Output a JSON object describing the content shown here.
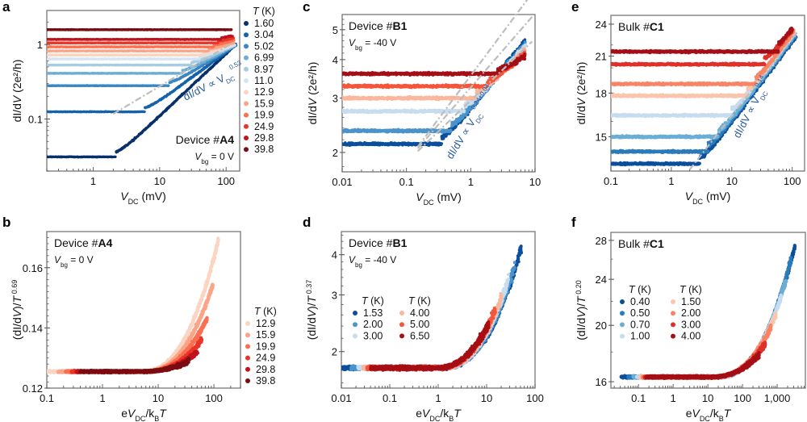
{
  "figure": {
    "panels": [
      "a",
      "b",
      "c",
      "d",
      "e",
      "f"
    ]
  },
  "chart_data": [
    {
      "panel": "a",
      "type": "scatter",
      "title": "",
      "xlabel": "V_DC (mV)",
      "ylabel": "dI/dV (2e²/h)",
      "xscale": "log",
      "yscale": "log",
      "xlim": [
        0.2,
        160
      ],
      "ylim": [
        0.02,
        2.86
      ],
      "xticks": [
        {
          "v": 1,
          "label": "1"
        },
        {
          "v": 10,
          "label": "10"
        },
        {
          "v": 100,
          "label": "100"
        }
      ],
      "yticks": [
        {
          "v": 0.1,
          "label": "0.1"
        },
        {
          "v": 1,
          "label": "1"
        }
      ],
      "annotations": {
        "device_prefix": "Device #",
        "device_id": "A4",
        "vbg_label": "= 0 V",
        "fit_text": "dI/dV ∝ V",
        "fit_sub": "DC",
        "fit_exp": "0.53"
      },
      "fit_line": {
        "exponent": 0.53,
        "x_range": [
          2,
          130
        ],
        "y_at_100": 0.93
      },
      "legend_title": "T (K)",
      "legend_position": "right-outside",
      "series": [
        {
          "name": "1.60",
          "color": "#08306b",
          "plateau": 0.031,
          "onset": 2.2,
          "end_y": 1.0,
          "end_x": 140
        },
        {
          "name": "3.04",
          "color": "#1663aa",
          "plateau": 0.125,
          "onset": 6,
          "end_y": 0.98,
          "end_x": 140
        },
        {
          "name": "5.02",
          "color": "#3b87c2",
          "plateau": 0.28,
          "onset": 14,
          "end_y": 0.97,
          "end_x": 135
        },
        {
          "name": "6.99",
          "color": "#6aaed6",
          "plateau": 0.41,
          "onset": 22,
          "end_y": 0.97,
          "end_x": 135
        },
        {
          "name": "8.97",
          "color": "#a6cde3",
          "plateau": 0.53,
          "onset": 30,
          "end_y": 0.98,
          "end_x": 135
        },
        {
          "name": "11.0",
          "color": "#d3e4f3",
          "plateau": 0.64,
          "onset": 40,
          "end_y": 1.0,
          "end_x": 135
        },
        {
          "name": "12.9",
          "color": "#fcd4c2",
          "plateau": 0.72,
          "onset": 45,
          "end_y": 1.02,
          "end_x": 130
        },
        {
          "name": "15.9",
          "color": "#fca487",
          "plateau": 0.82,
          "onset": 55,
          "end_y": 1.06,
          "end_x": 130
        },
        {
          "name": "19.9",
          "color": "#fa7051",
          "plateau": 0.93,
          "onset": 65,
          "end_y": 1.13,
          "end_x": 130
        },
        {
          "name": "24.9",
          "color": "#e8362a",
          "plateau": 1.05,
          "onset": 75,
          "end_y": 1.22,
          "end_x": 130
        },
        {
          "name": "29.8",
          "color": "#c0131c",
          "plateau": 1.17,
          "onset": 85,
          "end_y": 1.3,
          "end_x": 125
        },
        {
          "name": "39.8",
          "color": "#7a0d13",
          "plateau": 1.58,
          "onset": 200,
          "end_y": 1.6,
          "end_x": 120
        }
      ]
    },
    {
      "panel": "b",
      "type": "scatter",
      "xlabel": "eV_DC/k_B T",
      "ylabel": "(dI/dV)/T^0.69",
      "xscale": "log",
      "yscale": "linear",
      "xlim": [
        0.1,
        300
      ],
      "ylim": [
        0.12,
        0.172
      ],
      "xticks": [
        {
          "v": 0.1,
          "label": "0.1"
        },
        {
          "v": 1,
          "label": "1"
        },
        {
          "v": 10,
          "label": "10"
        },
        {
          "v": 100,
          "label": "100"
        }
      ],
      "yticks": [
        {
          "v": 0.12,
          "label": "0.12"
        },
        {
          "v": 0.14,
          "label": "0.14"
        },
        {
          "v": 0.16,
          "label": "0.16"
        }
      ],
      "annotations": {
        "device_prefix": "Device #",
        "device_id": "A4",
        "vbg_label": "= 0 V"
      },
      "legend_title": "T (K)",
      "legend_position": "right-outside",
      "collapse_value": 0.1255,
      "series": [
        {
          "name": "12.9",
          "color": "#fcd4c2",
          "x_max": 120,
          "y_max": 0.169
        },
        {
          "name": "15.9",
          "color": "#fca487",
          "x_max": 95,
          "y_max": 0.154
        },
        {
          "name": "19.9",
          "color": "#fa7051",
          "x_max": 75,
          "y_max": 0.143
        },
        {
          "name": "24.9",
          "color": "#e8362a",
          "x_max": 60,
          "y_max": 0.136
        },
        {
          "name": "29.8",
          "color": "#c0131c",
          "x_max": 50,
          "y_max": 0.132
        },
        {
          "name": "39.8",
          "color": "#7a0d13",
          "x_max": 35,
          "y_max": 0.129
        }
      ]
    },
    {
      "panel": "c",
      "type": "scatter",
      "xlabel": "V_DC (mV)",
      "ylabel": "dI/dV (2e²/h)",
      "xscale": "log",
      "yscale": "log",
      "xlim": [
        0.01,
        10
      ],
      "ylim": [
        1.73,
        5.6
      ],
      "xticks": [
        {
          "v": 0.01,
          "label": "0.01"
        },
        {
          "v": 0.1,
          "label": "0.1"
        },
        {
          "v": 1,
          "label": "1"
        },
        {
          "v": 10,
          "label": "10"
        }
      ],
      "yticks": [
        {
          "v": 2,
          "label": "2"
        },
        {
          "v": 3,
          "label": "3"
        },
        {
          "v": 4,
          "label": "4"
        },
        {
          "v": 5,
          "label": "5"
        }
      ],
      "annotations": {
        "device_prefix": "Device #",
        "device_id": "B1",
        "vbg_label": "= -40 V",
        "fit_text": "dI/dV ∝ V",
        "fit_sub": "DC",
        "fit_exp": "0.24±0.04"
      },
      "fit_lines": [
        {
          "exponent": 0.28,
          "y_at_1": 3.55
        },
        {
          "exponent": 0.24,
          "y_at_1": 3.25
        },
        {
          "exponent": 0.2,
          "y_at_1": 2.95
        }
      ],
      "series": [
        {
          "name": "1.53",
          "color": "#0b4f9c",
          "plateau": 2.13,
          "onset": 0.35,
          "end_y": 4.6
        },
        {
          "name": "2.00",
          "color": "#4a93cb",
          "plateau": 2.35,
          "onset": 0.5,
          "end_y": 4.5
        },
        {
          "name": "3.00",
          "color": "#c6dcef",
          "plateau": 2.72,
          "onset": 0.8,
          "end_y": 4.4
        },
        {
          "name": "4.00",
          "color": "#fbb69c",
          "plateau": 3.0,
          "onset": 1.2,
          "end_y": 4.3
        },
        {
          "name": "5.00",
          "color": "#f4563b",
          "plateau": 3.28,
          "onset": 1.8,
          "end_y": 4.2
        },
        {
          "name": "6.50",
          "color": "#a50f15",
          "plateau": 3.6,
          "onset": 2.6,
          "end_y": 4.1
        }
      ]
    },
    {
      "panel": "d",
      "type": "scatter",
      "xlabel": "eV_DC/k_B T",
      "ylabel": "(dI/dV)/T^0.37",
      "xscale": "log",
      "yscale": "log",
      "xlim": [
        0.01,
        100
      ],
      "ylim": [
        1.54,
        4.72
      ],
      "xticks": [
        {
          "v": 0.01,
          "label": "0.01"
        },
        {
          "v": 0.1,
          "label": "0.1"
        },
        {
          "v": 1,
          "label": "1"
        },
        {
          "v": 10,
          "label": "10"
        },
        {
          "v": 100,
          "label": "100"
        }
      ],
      "yticks": [
        {
          "v": 2,
          "label": "2"
        },
        {
          "v": 3,
          "label": "3"
        },
        {
          "v": 4,
          "label": "4"
        }
      ],
      "annotations": {
        "device_prefix": "Device #",
        "device_id": "B1",
        "vbg_label": "= -40 V"
      },
      "legend_title": "T (K)",
      "legend_position": "center-left (two columns)",
      "collapse_value": 1.78,
      "series": [
        {
          "name": "1.53",
          "color": "#0b4f9c",
          "x_max": 52,
          "y_max": 4.2
        },
        {
          "name": "2.00",
          "color": "#4a93cb",
          "x_max": 38,
          "y_max": 3.7
        },
        {
          "name": "3.00",
          "color": "#c6dcef",
          "x_max": 28,
          "y_max": 3.35
        },
        {
          "name": "4.00",
          "color": "#fbb69c",
          "x_max": 20,
          "y_max": 2.95
        },
        {
          "name": "5.00",
          "color": "#f4563b",
          "x_max": 15,
          "y_max": 2.7
        },
        {
          "name": "6.50",
          "color": "#a50f15",
          "x_max": 11,
          "y_max": 2.45
        }
      ]
    },
    {
      "panel": "e",
      "type": "scatter",
      "xlabel": "V_DC (mV)",
      "ylabel": "dI/dV (2e²/h)",
      "xscale": "log",
      "yscale": "log",
      "xlim": [
        0.1,
        160
      ],
      "ylim": [
        13.0,
        24.9
      ],
      "xticks": [
        {
          "v": 0.1,
          "label": "0.1"
        },
        {
          "v": 1,
          "label": "1"
        },
        {
          "v": 10,
          "label": "10"
        },
        {
          "v": 100,
          "label": "100"
        }
      ],
      "yticks": [
        {
          "v": 15,
          "label": "15"
        },
        {
          "v": 18,
          "label": "18"
        },
        {
          "v": 21,
          "label": "21"
        },
        {
          "v": 24,
          "label": "24"
        }
      ],
      "annotations": {
        "device_prefix": "Bulk #",
        "device_id": "C1",
        "fit_text": "dI/dV ∝ V",
        "fit_sub": "DC",
        "fit_exp": "0.14"
      },
      "fit_line": {
        "exponent": 0.14,
        "x_range": [
          2,
          120
        ],
        "y_at_100": 22.6
      },
      "series": [
        {
          "name": "0.40",
          "color": "#0b4f9c",
          "plateau": 13.4,
          "onset": 3,
          "end_y": 22.8,
          "end_x": 115
        },
        {
          "name": "0.50",
          "color": "#2b7bba",
          "plateau": 14.1,
          "onset": 4,
          "end_y": 22.9,
          "end_x": 112
        },
        {
          "name": "0.70",
          "color": "#6aaed6",
          "plateau": 15.0,
          "onset": 6,
          "end_y": 23.0,
          "end_x": 110
        },
        {
          "name": "1.00",
          "color": "#c6dcef",
          "plateau": 16.4,
          "onset": 10,
          "end_y": 23.1,
          "end_x": 108
        },
        {
          "name": "1.50",
          "color": "#fbc4ad",
          "plateau": 17.8,
          "onset": 18,
          "end_y": 23.2,
          "end_x": 105
        },
        {
          "name": "2.00",
          "color": "#f98466",
          "plateau": 18.7,
          "onset": 25,
          "end_y": 23.3,
          "end_x": 105
        },
        {
          "name": "3.00",
          "color": "#e0302a",
          "plateau": 20.3,
          "onset": 35,
          "end_y": 23.4,
          "end_x": 100
        },
        {
          "name": "4.00",
          "color": "#a50f15",
          "plateau": 21.4,
          "onset": 60,
          "end_y": 23.5,
          "end_x": 100
        }
      ]
    },
    {
      "panel": "f",
      "type": "scatter",
      "xlabel": "eV_DC/k_B T",
      "ylabel": "(dI/dV)/T^0.20",
      "xscale": "log",
      "yscale": "log",
      "xlim": [
        0.016,
        6500
      ],
      "ylim": [
        15.6,
        28.9
      ],
      "xticks": [
        {
          "v": 0.1,
          "label": "0.1"
        },
        {
          "v": 1,
          "label": "1"
        },
        {
          "v": 10,
          "label": "10"
        },
        {
          "v": 100,
          "label": "100"
        },
        {
          "v": 1000,
          "label": "1,000"
        }
      ],
      "yticks": [
        {
          "v": 16,
          "label": "16"
        },
        {
          "v": 20,
          "label": "20"
        },
        {
          "v": 24,
          "label": "24"
        },
        {
          "v": 28,
          "label": "28"
        }
      ],
      "annotations": {
        "device_prefix": "Bulk #",
        "device_id": "C1"
      },
      "legend_title": "T (K)",
      "legend_position": "center-left (two columns)",
      "collapse_value": 16.3,
      "series": [
        {
          "name": "0.40",
          "color": "#0b4f9c",
          "x_max": 3200,
          "y_max": 27.3
        },
        {
          "name": "0.50",
          "color": "#2b7bba",
          "x_max": 2500,
          "y_max": 26.0
        },
        {
          "name": "0.70",
          "color": "#6aaed6",
          "x_max": 1800,
          "y_max": 24.0
        },
        {
          "name": "1.00",
          "color": "#c6dcef",
          "x_max": 1300,
          "y_max": 22.4
        },
        {
          "name": "1.50",
          "color": "#fbc4ad",
          "x_max": 900,
          "y_max": 20.9
        },
        {
          "name": "2.00",
          "color": "#f98466",
          "x_max": 650,
          "y_max": 19.8
        },
        {
          "name": "3.00",
          "color": "#e0302a",
          "x_max": 450,
          "y_max": 18.6
        },
        {
          "name": "4.00",
          "color": "#a50f15",
          "x_max": 300,
          "y_max": 17.8
        }
      ]
    }
  ]
}
